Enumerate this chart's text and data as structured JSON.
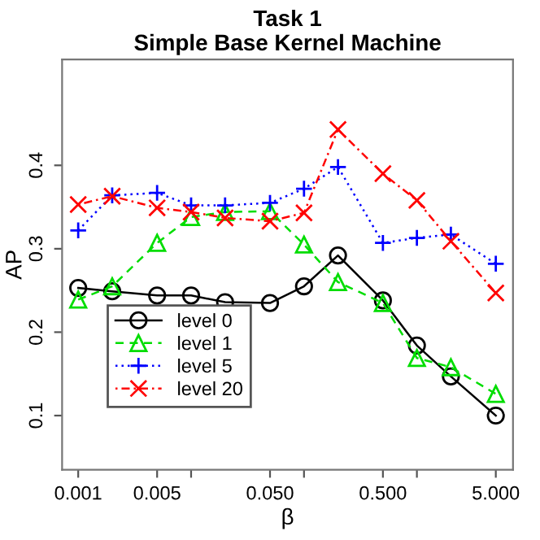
{
  "chart_data": {
    "type": "line",
    "title": "Task 1\nSimple Base Kernel Machine",
    "xlabel": "β",
    "ylabel": "AP",
    "x": [
      0.001,
      0.002,
      0.005,
      0.01,
      0.02,
      0.05,
      0.1,
      0.2,
      0.5,
      1,
      2,
      5
    ],
    "series": [
      {
        "name": "level 0",
        "color": "#000000",
        "marker": "circle",
        "line_style": "solid",
        "values": [
          0.253,
          0.249,
          0.244,
          0.244,
          0.236,
          0.235,
          0.255,
          0.292,
          0.238,
          0.184,
          0.147,
          0.1
        ]
      },
      {
        "name": "level 1",
        "color": "#00dd00",
        "marker": "triangle",
        "line_style": "dashed",
        "values": [
          0.239,
          0.255,
          0.307,
          0.338,
          0.344,
          0.345,
          0.305,
          0.26,
          0.235,
          0.169,
          0.158,
          0.126
        ]
      },
      {
        "name": "level 5",
        "color": "#0000ff",
        "marker": "plus",
        "line_style": "dotted",
        "values": [
          0.322,
          0.364,
          0.367,
          0.352,
          0.352,
          0.355,
          0.372,
          0.398,
          0.307,
          0.313,
          0.317,
          0.282
        ]
      },
      {
        "name": "level 20",
        "color": "#ff0000",
        "marker": "cross",
        "line_style": "dashdot",
        "values": [
          0.353,
          0.363,
          0.349,
          0.344,
          0.337,
          0.333,
          0.343,
          0.443,
          0.39,
          0.358,
          0.309,
          0.247
        ]
      }
    ],
    "log": "x",
    "xlim": [
      0.00072,
      7.1
    ],
    "ylim": [
      0.035,
      0.527
    ],
    "xticks": [
      {
        "value": 0.001,
        "label": "0.001"
      },
      {
        "value": 0.005,
        "label": "0.005"
      },
      {
        "value": 0.01,
        "label": null
      },
      {
        "value": 0.05,
        "label": "0.050"
      },
      {
        "value": 0.1,
        "label": null
      },
      {
        "value": 0.5,
        "label": "0.500"
      },
      {
        "value": 1,
        "label": null
      },
      {
        "value": 5,
        "label": "5.000"
      }
    ],
    "yticks": [
      0.1,
      0.2,
      0.3,
      0.4
    ],
    "legend": "bottom left",
    "grid": false
  }
}
